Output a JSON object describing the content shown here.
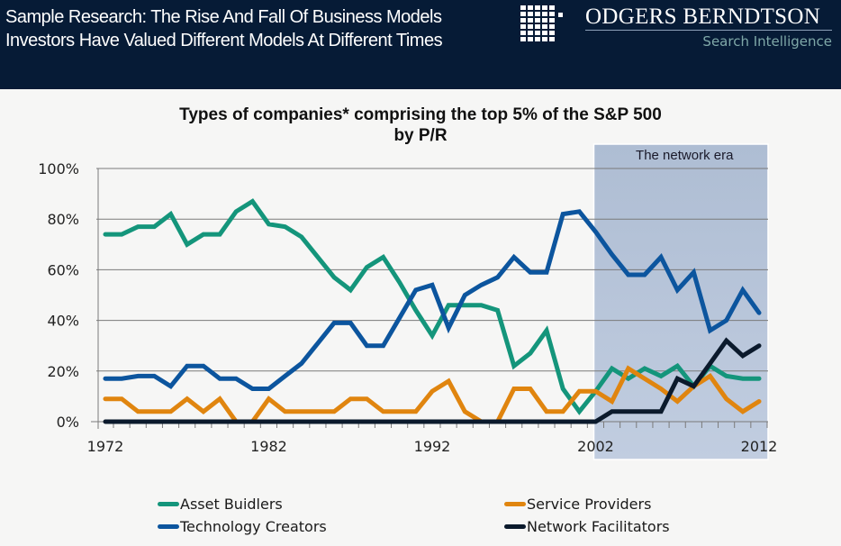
{
  "header": {
    "line1": "Sample Research: The Rise And Fall Of Business Models",
    "line2": "Investors Have Valued Different Models At Different Times",
    "brand": "ODGERS BERNDTSON",
    "sub_brand": "Search Intelligence",
    "logo_icon": "grid-logo-icon"
  },
  "colors": {
    "header_bg": "#061b36",
    "asset_builders": "#14957b",
    "technology_creators": "#0c559e",
    "service_providers": "#e0850f",
    "network_facilitators": "#0b1a2c",
    "era_box": "#b4c3d8"
  },
  "chart_data": {
    "type": "line",
    "title": "Types of companies* comprising the top 5% of the S&P 500",
    "subtitle": "by P/R",
    "xlabel": "",
    "ylabel": "",
    "x": [
      1972,
      1973,
      1974,
      1975,
      1976,
      1977,
      1978,
      1979,
      1980,
      1981,
      1982,
      1983,
      1984,
      1985,
      1986,
      1987,
      1988,
      1989,
      1990,
      1991,
      1992,
      1993,
      1994,
      1995,
      1996,
      1997,
      1998,
      1999,
      2000,
      2001,
      2002,
      2003,
      2004,
      2005,
      2006,
      2007,
      2008,
      2009,
      2010,
      2011,
      2012
    ],
    "x_ticks": [
      "1972",
      "1982",
      "1992",
      "2002",
      "2012"
    ],
    "y_ticks": [
      "0%",
      "20%",
      "40%",
      "60%",
      "80%",
      "100%"
    ],
    "ylim": [
      0,
      100
    ],
    "xlim": [
      1972,
      2012
    ],
    "grid": "horizontal",
    "legend_position": "bottom",
    "annotation": {
      "label": "The network era",
      "x_start": 2002,
      "x_end": 2012
    },
    "series": [
      {
        "name": "Asset Buidlers",
        "key": "asset_builders",
        "values": [
          74,
          74,
          77,
          77,
          82,
          70,
          74,
          74,
          83,
          87,
          78,
          77,
          73,
          65,
          57,
          52,
          61,
          65,
          55,
          44,
          34,
          46,
          46,
          46,
          44,
          22,
          27,
          36,
          13,
          4,
          12,
          21,
          17,
          21,
          18,
          22,
          14,
          22,
          18,
          17,
          17
        ]
      },
      {
        "name": "Service Providers",
        "key": "service_providers",
        "values": [
          9,
          9,
          4,
          4,
          4,
          9,
          4,
          9,
          0,
          0,
          9,
          4,
          4,
          4,
          4,
          9,
          9,
          4,
          4,
          4,
          12,
          16,
          4,
          0,
          0,
          13,
          13,
          4,
          4,
          12,
          12,
          8,
          21,
          17,
          13,
          8,
          14,
          18,
          9,
          4,
          8
        ]
      },
      {
        "name": "Technology Creators",
        "key": "technology_creators",
        "values": [
          17,
          17,
          18,
          18,
          14,
          22,
          22,
          17,
          17,
          13,
          13,
          18,
          23,
          31,
          39,
          39,
          30,
          30,
          41,
          52,
          54,
          37,
          50,
          54,
          57,
          65,
          59,
          59,
          82,
          83,
          75,
          66,
          58,
          58,
          65,
          52,
          59,
          36,
          40,
          52,
          43
        ]
      },
      {
        "name": "Network Facilitators",
        "key": "network_facilitators",
        "values": [
          0,
          0,
          0,
          0,
          0,
          0,
          0,
          0,
          0,
          0,
          0,
          0,
          0,
          0,
          0,
          0,
          0,
          0,
          0,
          0,
          0,
          0,
          0,
          0,
          0,
          0,
          0,
          0,
          0,
          0,
          0,
          4,
          4,
          4,
          4,
          17,
          14,
          23,
          32,
          26,
          30
        ]
      }
    ]
  },
  "legend": [
    {
      "label": "Asset Buidlers",
      "key": "asset_builders"
    },
    {
      "label": "Service Providers",
      "key": "service_providers"
    },
    {
      "label": "Technology Creators",
      "key": "technology_creators"
    },
    {
      "label": "Network Facilitators",
      "key": "network_facilitators"
    }
  ]
}
